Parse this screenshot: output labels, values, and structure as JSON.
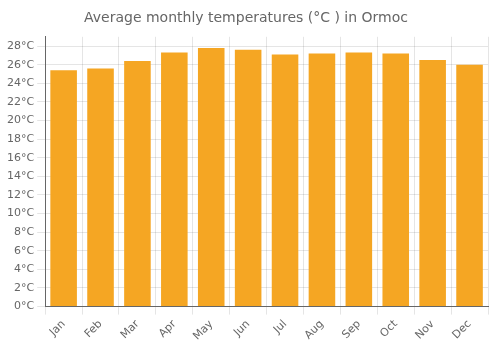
{
  "chart_data": {
    "type": "bar",
    "title": "Average monthly temperatures (°C ) in Ormoc",
    "categories": [
      "Jan",
      "Feb",
      "Mar",
      "Apr",
      "May",
      "Jun",
      "Jul",
      "Aug",
      "Sep",
      "Oct",
      "Nov",
      "Dec"
    ],
    "values": [
      25.4,
      25.6,
      26.4,
      27.3,
      27.8,
      27.6,
      27.1,
      27.2,
      27.3,
      27.2,
      26.5,
      26.0
    ],
    "color": "#F5A623",
    "ylim": [
      0,
      29
    ],
    "yticks": [
      {
        "value": 0,
        "label": "0°C"
      },
      {
        "value": 2,
        "label": "2°C"
      },
      {
        "value": 4,
        "label": "4°C"
      },
      {
        "value": 6,
        "label": "6°C"
      },
      {
        "value": 8,
        "label": "8°C"
      },
      {
        "value": 10,
        "label": "10°C"
      },
      {
        "value": 12,
        "label": "12°C"
      },
      {
        "value": 14,
        "label": "14°C"
      },
      {
        "value": 16,
        "label": "16°C"
      },
      {
        "value": 18,
        "label": "18°C"
      },
      {
        "value": 20,
        "label": "20°C"
      },
      {
        "value": 22,
        "label": "22°C"
      },
      {
        "value": 24,
        "label": "24°C"
      },
      {
        "value": 26,
        "label": "26°C"
      },
      {
        "value": 28,
        "label": "28°C"
      }
    ],
    "grid": true
  }
}
